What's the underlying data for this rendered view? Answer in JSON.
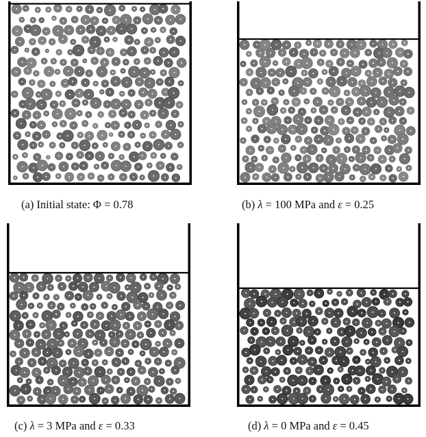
{
  "panels": [
    {
      "id": "a",
      "caption_prefix": "(a) Initial state: ",
      "symbol": "Φ",
      "value_text": " = 0.78",
      "packing_fraction": 0.78,
      "fill_level": 1.0,
      "disc_color": "#6a6a6a"
    },
    {
      "id": "b",
      "caption_prefix": "(b) ",
      "lambda_symbol": "λ",
      "lambda_text": " = 100 MPa and ",
      "epsilon_symbol": "ε",
      "epsilon_text": " = 0.25",
      "strain": 0.25,
      "fill_level": 0.805,
      "disc_color": "#6e6e6e"
    },
    {
      "id": "c",
      "caption_prefix": "(c) ",
      "lambda_symbol": "λ",
      "lambda_text": " = 3 MPa and ",
      "epsilon_symbol": "ε",
      "epsilon_text": " = 0.33",
      "strain": 0.33,
      "fill_level": 0.74,
      "disc_color": "#5a5a5a"
    },
    {
      "id": "d",
      "caption_prefix": "(d) ",
      "lambda_symbol": "λ",
      "lambda_text": " = 0 MPa and ",
      "epsilon_symbol": "ε",
      "epsilon_text": " = 0.45",
      "strain": 0.45,
      "fill_level": 0.655,
      "disc_color": "#3e3e3e"
    }
  ]
}
